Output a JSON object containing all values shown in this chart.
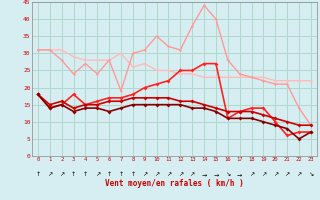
{
  "xlabel": "Vent moyen/en rafales ( km/h )",
  "xlim": [
    -0.5,
    23.5
  ],
  "ylim": [
    0,
    45
  ],
  "yticks": [
    0,
    5,
    10,
    15,
    20,
    25,
    30,
    35,
    40,
    45
  ],
  "xticks": [
    0,
    1,
    2,
    3,
    4,
    5,
    6,
    7,
    8,
    9,
    10,
    11,
    12,
    13,
    14,
    15,
    16,
    17,
    18,
    19,
    20,
    21,
    22,
    23
  ],
  "bg_color": "#d6eef2",
  "grid_color": "#b0d8cc",
  "lines": [
    {
      "x": [
        0,
        1,
        2,
        3,
        4,
        5,
        6,
        7,
        8,
        9,
        10,
        11,
        12,
        13,
        14,
        15,
        16,
        17,
        18,
        19,
        20,
        21,
        22,
        23
      ],
      "y": [
        31,
        31,
        31,
        29,
        28,
        28,
        28,
        30,
        26,
        27,
        25,
        25,
        24,
        24,
        23,
        23,
        23,
        23,
        23,
        23,
        22,
        22,
        22,
        22
      ],
      "color": "#ffbbbb",
      "lw": 1.0,
      "marker": "D",
      "ms": 1.5
    },
    {
      "x": [
        0,
        1,
        2,
        3,
        4,
        5,
        6,
        7,
        8,
        9,
        10,
        11,
        12,
        13,
        14,
        15,
        16,
        17,
        18,
        19,
        20,
        21,
        22,
        23
      ],
      "y": [
        31,
        31,
        28,
        24,
        27,
        24,
        28,
        19,
        30,
        31,
        35,
        32,
        31,
        38,
        44,
        40,
        28,
        24,
        23,
        22,
        21,
        21,
        14,
        9
      ],
      "color": "#ff9999",
      "lw": 1.0,
      "marker": "D",
      "ms": 1.5
    },
    {
      "x": [
        0,
        1,
        2,
        3,
        4,
        5,
        6,
        7,
        8,
        9,
        10,
        11,
        12,
        13,
        14,
        15,
        16,
        17,
        18,
        19,
        20,
        21,
        22,
        23
      ],
      "y": [
        18,
        14,
        15,
        18,
        15,
        16,
        17,
        17,
        18,
        20,
        21,
        22,
        25,
        25,
        27,
        27,
        11,
        13,
        14,
        14,
        10,
        6,
        7,
        7
      ],
      "color": "#ff2222",
      "lw": 1.2,
      "marker": "D",
      "ms": 2.0
    },
    {
      "x": [
        0,
        1,
        2,
        3,
        4,
        5,
        6,
        7,
        8,
        9,
        10,
        11,
        12,
        13,
        14,
        15,
        16,
        17,
        18,
        19,
        20,
        21,
        22,
        23
      ],
      "y": [
        18,
        15,
        16,
        14,
        15,
        15,
        16,
        16,
        17,
        17,
        17,
        17,
        16,
        16,
        15,
        14,
        13,
        13,
        13,
        12,
        11,
        10,
        9,
        9
      ],
      "color": "#cc0000",
      "lw": 1.2,
      "marker": "D",
      "ms": 2.0
    },
    {
      "x": [
        0,
        1,
        2,
        3,
        4,
        5,
        6,
        7,
        8,
        9,
        10,
        11,
        12,
        13,
        14,
        15,
        16,
        17,
        18,
        19,
        20,
        21,
        22,
        23
      ],
      "y": [
        18,
        14,
        15,
        13,
        14,
        14,
        13,
        14,
        15,
        15,
        15,
        15,
        15,
        14,
        14,
        13,
        11,
        11,
        11,
        10,
        9,
        8,
        5,
        7
      ],
      "color": "#880000",
      "lw": 1.2,
      "marker": "D",
      "ms": 2.0
    }
  ],
  "arrow_symbols": [
    "↑",
    "↗",
    "↗",
    "↑",
    "↑",
    "↗",
    "↑",
    "↑",
    "↑",
    "↗",
    "↗",
    "↗",
    "↗",
    "↗",
    "→",
    "→",
    "↘",
    "→",
    "↗",
    "↗",
    "↗",
    "↗",
    "↗",
    "↘"
  ]
}
